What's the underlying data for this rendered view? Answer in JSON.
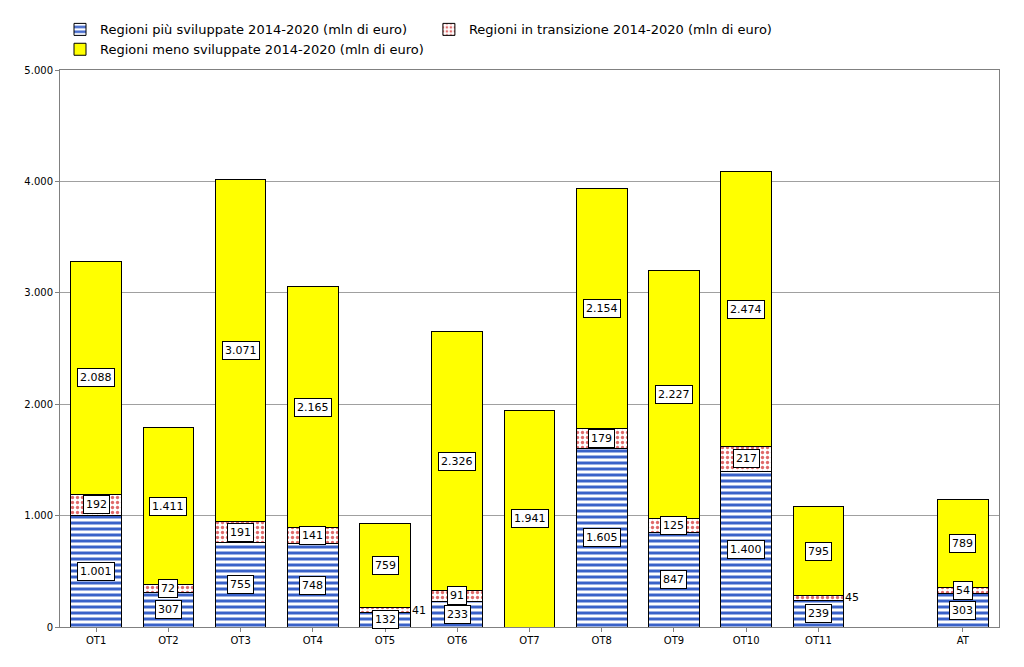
{
  "chart_data": {
    "type": "bar",
    "stacked": true,
    "data_labels": true,
    "grid": true,
    "legend": "top",
    "categories": [
      "OT1",
      "OT2",
      "OT3",
      "OT4",
      "OT5",
      "OT6",
      "OT7",
      "OT8",
      "OT9",
      "OT10",
      "OT11",
      null,
      "AT"
    ],
    "series": [
      {
        "name": "Regioni più sviluppate 2014-2020 (mln di euro)",
        "color": "#3a62c9",
        "values": [
          1001,
          307,
          755,
          748,
          132,
          233,
          null,
          1605,
          847,
          1400,
          239,
          null,
          303
        ],
        "value_labels": [
          "1.001",
          "307",
          "755",
          "748",
          "132",
          "233",
          null,
          "1.605",
          "847",
          "1.400",
          "239",
          null,
          "303"
        ]
      },
      {
        "name": "Regioni in transizione 2014-2020 (mln di euro)",
        "color": "#e06a6a",
        "values": [
          192,
          72,
          191,
          141,
          41,
          91,
          null,
          179,
          125,
          217,
          45,
          null,
          54
        ],
        "value_labels": [
          "192",
          "72",
          "191",
          "141",
          "41",
          "91",
          null,
          "179",
          "125",
          "217",
          "45",
          null,
          "54"
        ]
      },
      {
        "name": "Regioni meno sviluppate 2014-2020 (mln di euro)",
        "color": "#ffff00",
        "values": [
          2088,
          1411,
          3071,
          2165,
          759,
          2326,
          1941,
          2154,
          2227,
          2474,
          795,
          null,
          789
        ],
        "value_labels": [
          "2.088",
          "1.411",
          "3.071",
          "2.165",
          "759",
          "2.326",
          "1.941",
          "2.154",
          "2.227",
          "2.474",
          "795",
          null,
          "789"
        ]
      }
    ],
    "ylim": [
      0,
      5000
    ],
    "yticks": [
      0,
      {
        "value": 1000,
        "label": "1.000"
      },
      {
        "value": 2000,
        "label": "2.000"
      },
      {
        "value": 3000,
        "label": "3.000"
      },
      {
        "value": 4000,
        "label": "4.000"
      },
      {
        "value": 5000,
        "label": "5.000"
      }
    ]
  }
}
